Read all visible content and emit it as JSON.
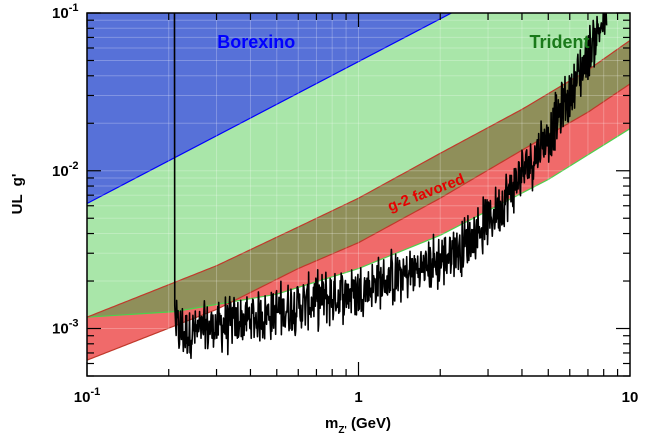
{
  "chart_data": {
    "type": "area",
    "title": "",
    "xlabel": {
      "main": "m",
      "sub": "Z'",
      "rest": " (GeV)"
    },
    "ylabel": "UL  g'",
    "xscale": "log",
    "yscale": "log",
    "xlim": [
      0.1,
      10
    ],
    "ylim": [
      0.0005,
      0.1
    ],
    "x_ticks": [
      {
        "value": 0.1,
        "label": "10",
        "sup": "-1"
      },
      {
        "value": 1,
        "label": "1",
        "sup": ""
      },
      {
        "value": 10,
        "label": "10",
        "sup": ""
      }
    ],
    "y_ticks": [
      {
        "value": 0.001,
        "label": "10",
        "sup": "-3"
      },
      {
        "value": 0.01,
        "label": "10",
        "sup": "-2"
      },
      {
        "value": 0.1,
        "label": "10",
        "sup": "-1"
      }
    ],
    "bands": [
      {
        "name": "Borexino",
        "color": "#5771d8",
        "edge_color": "#0000ff",
        "lower": [
          [
            0.1,
            0.0062
          ],
          [
            2.2,
            0.1
          ]
        ],
        "upper_value": 0.1
      },
      {
        "name": "Trident",
        "color": "#a9e6a9",
        "edge_color": "#4cd14c",
        "lower": [
          [
            0.1,
            0.00118
          ],
          [
            0.21,
            0.00128
          ],
          [
            0.5,
            0.00165
          ],
          [
            1,
            0.0024
          ],
          [
            2,
            0.0039
          ],
          [
            5,
            0.0088
          ],
          [
            10,
            0.0185
          ]
        ],
        "upper": [
          [
            0.1,
            0.1
          ],
          [
            10,
            0.1
          ]
        ]
      },
      {
        "name": "g-2 favored",
        "color": "#8f8f5a",
        "edge_color": "#c0392b",
        "outside_color": "#f06a6a",
        "lower": [
          [
            0.1,
            0.00063
          ],
          [
            0.3,
            0.00132
          ],
          [
            0.6,
            0.0024
          ],
          [
            1,
            0.0035
          ],
          [
            2,
            0.0067
          ],
          [
            4,
            0.0135
          ],
          [
            7,
            0.0235
          ],
          [
            10,
            0.0355
          ]
        ],
        "upper": [
          [
            0.1,
            0.00118
          ],
          [
            0.3,
            0.0025
          ],
          [
            0.6,
            0.0044
          ],
          [
            1,
            0.0067
          ],
          [
            2,
            0.0129
          ],
          [
            4,
            0.0245
          ],
          [
            7,
            0.0435
          ],
          [
            10,
            0.067
          ]
        ]
      }
    ],
    "limit_curve": {
      "color": "#000000",
      "threshold_x": 0.21,
      "noise_amplitude": 0.14,
      "points": [
        [
          0.21,
          0.1
        ],
        [
          0.2105,
          0.0014
        ],
        [
          0.213,
          0.00105
        ],
        [
          0.22,
          0.00095
        ],
        [
          0.25,
          0.00095
        ],
        [
          0.3,
          0.00103
        ],
        [
          0.4,
          0.00115
        ],
        [
          0.5,
          0.00128
        ],
        [
          0.7,
          0.0015
        ],
        [
          1,
          0.00175
        ],
        [
          1.5,
          0.0022
        ],
        [
          2,
          0.0027
        ],
        [
          2.5,
          0.0035
        ],
        [
          3,
          0.0048
        ],
        [
          3.5,
          0.0068
        ],
        [
          4,
          0.0095
        ],
        [
          5,
          0.017
        ],
        [
          6,
          0.03
        ],
        [
          7,
          0.055
        ],
        [
          8,
          0.09
        ],
        [
          8.2,
          0.1
        ]
      ]
    },
    "annotations": [
      {
        "text": "Borexino",
        "x": 0.42,
        "y": 0.06,
        "color": "#0000ff",
        "rotate": 0
      },
      {
        "text": "Trident",
        "x": 5.5,
        "y": 0.06,
        "color": "#1a7a1a",
        "rotate": 0
      },
      {
        "text": "g-2 favored",
        "x": 1.8,
        "y": 0.0068,
        "color": "#e60000",
        "rotate": -21
      }
    ]
  }
}
